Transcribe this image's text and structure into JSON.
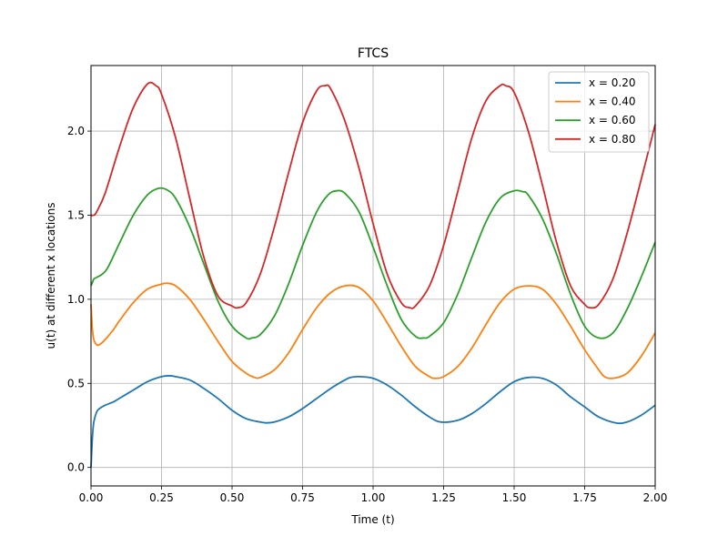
{
  "chart_data": {
    "type": "line",
    "title": "FTCS",
    "xlabel": "Time (t)",
    "ylabel": "u(t) at different x locations",
    "xlim": [
      0.0,
      2.0
    ],
    "ylim": [
      -0.11,
      2.39
    ],
    "xticks": [
      0.0,
      0.25,
      0.5,
      0.75,
      1.0,
      1.25,
      1.5,
      1.75,
      2.0
    ],
    "xtick_labels": [
      "0.00",
      "0.25",
      "0.50",
      "0.75",
      "1.00",
      "1.25",
      "1.50",
      "1.75",
      "2.00"
    ],
    "yticks": [
      0.0,
      0.5,
      1.0,
      1.5,
      2.0
    ],
    "ytick_labels": [
      "0.0",
      "0.5",
      "1.0",
      "1.5",
      "2.0"
    ],
    "grid": true,
    "legend_position": "top-right",
    "series": [
      {
        "name": "x = 0.20",
        "color": "#1f77b4",
        "x": [
          0.0,
          0.005,
          0.01,
          0.02,
          0.03,
          0.05,
          0.08,
          0.1,
          0.15,
          0.2,
          0.25,
          0.28,
          0.3,
          0.35,
          0.4,
          0.45,
          0.5,
          0.55,
          0.6,
          0.62,
          0.65,
          0.7,
          0.75,
          0.8,
          0.85,
          0.9,
          0.92,
          0.95,
          1.0,
          1.05,
          1.1,
          1.15,
          1.2,
          1.24,
          1.3,
          1.35,
          1.4,
          1.45,
          1.5,
          1.55,
          1.6,
          1.65,
          1.7,
          1.75,
          1.8,
          1.86,
          1.9,
          1.95,
          2.0
        ],
        "y": [
          0.0,
          0.18,
          0.27,
          0.33,
          0.35,
          0.37,
          0.39,
          0.41,
          0.46,
          0.51,
          0.54,
          0.545,
          0.54,
          0.52,
          0.47,
          0.41,
          0.34,
          0.29,
          0.27,
          0.265,
          0.27,
          0.3,
          0.35,
          0.41,
          0.47,
          0.52,
          0.535,
          0.54,
          0.53,
          0.49,
          0.43,
          0.36,
          0.3,
          0.27,
          0.28,
          0.32,
          0.38,
          0.45,
          0.51,
          0.535,
          0.53,
          0.49,
          0.42,
          0.36,
          0.3,
          0.265,
          0.27,
          0.31,
          0.37
        ]
      },
      {
        "name": "x = 0.40",
        "color": "#ff7f0e",
        "x": [
          0.0,
          0.005,
          0.01,
          0.02,
          0.03,
          0.05,
          0.08,
          0.1,
          0.15,
          0.2,
          0.25,
          0.27,
          0.3,
          0.35,
          0.4,
          0.45,
          0.5,
          0.55,
          0.58,
          0.6,
          0.65,
          0.7,
          0.75,
          0.8,
          0.85,
          0.9,
          0.95,
          1.0,
          1.05,
          1.1,
          1.15,
          1.2,
          1.22,
          1.25,
          1.3,
          1.35,
          1.4,
          1.45,
          1.5,
          1.55,
          1.6,
          1.65,
          1.7,
          1.75,
          1.8,
          1.82,
          1.85,
          1.9,
          1.95,
          2.0
        ],
        "y": [
          0.97,
          0.82,
          0.76,
          0.73,
          0.73,
          0.76,
          0.82,
          0.87,
          0.98,
          1.06,
          1.09,
          1.095,
          1.08,
          1.0,
          0.88,
          0.75,
          0.63,
          0.56,
          0.535,
          0.535,
          0.58,
          0.68,
          0.82,
          0.95,
          1.04,
          1.08,
          1.07,
          0.99,
          0.86,
          0.72,
          0.6,
          0.54,
          0.53,
          0.54,
          0.6,
          0.71,
          0.85,
          0.98,
          1.06,
          1.08,
          1.06,
          0.97,
          0.84,
          0.7,
          0.58,
          0.54,
          0.53,
          0.56,
          0.66,
          0.8
        ]
      },
      {
        "name": "x = 0.60",
        "color": "#2ca02c",
        "x": [
          0.0,
          0.005,
          0.01,
          0.02,
          0.04,
          0.06,
          0.1,
          0.15,
          0.2,
          0.24,
          0.27,
          0.3,
          0.35,
          0.4,
          0.45,
          0.5,
          0.55,
          0.57,
          0.6,
          0.65,
          0.7,
          0.75,
          0.8,
          0.84,
          0.87,
          0.9,
          0.95,
          1.0,
          1.05,
          1.1,
          1.15,
          1.18,
          1.2,
          1.25,
          1.3,
          1.35,
          1.4,
          1.45,
          1.5,
          1.53,
          1.55,
          1.6,
          1.65,
          1.7,
          1.75,
          1.8,
          1.85,
          1.9,
          1.95,
          2.0
        ],
        "y": [
          1.08,
          1.1,
          1.12,
          1.13,
          1.15,
          1.19,
          1.33,
          1.5,
          1.62,
          1.66,
          1.65,
          1.6,
          1.43,
          1.21,
          0.99,
          0.84,
          0.77,
          0.77,
          0.79,
          0.9,
          1.09,
          1.32,
          1.52,
          1.62,
          1.645,
          1.63,
          1.52,
          1.31,
          1.08,
          0.88,
          0.78,
          0.77,
          0.78,
          0.86,
          1.03,
          1.25,
          1.46,
          1.6,
          1.645,
          1.64,
          1.62,
          1.48,
          1.27,
          1.03,
          0.84,
          0.77,
          0.8,
          0.94,
          1.13,
          1.34
        ]
      },
      {
        "name": "x = 0.80",
        "color": "#d62728",
        "x": [
          0.0,
          0.01,
          0.02,
          0.05,
          0.1,
          0.15,
          0.2,
          0.23,
          0.25,
          0.3,
          0.35,
          0.4,
          0.45,
          0.5,
          0.52,
          0.55,
          0.6,
          0.65,
          0.7,
          0.75,
          0.8,
          0.83,
          0.85,
          0.9,
          0.95,
          1.0,
          1.05,
          1.1,
          1.13,
          1.15,
          1.2,
          1.25,
          1.3,
          1.35,
          1.4,
          1.45,
          1.47,
          1.5,
          1.55,
          1.6,
          1.65,
          1.7,
          1.75,
          1.77,
          1.8,
          1.85,
          1.9,
          1.95,
          2.0
        ],
        "y": [
          1.5,
          1.5,
          1.52,
          1.63,
          1.9,
          2.14,
          2.28,
          2.27,
          2.22,
          1.96,
          1.6,
          1.25,
          1.02,
          0.96,
          0.95,
          0.98,
          1.15,
          1.43,
          1.75,
          2.05,
          2.24,
          2.27,
          2.25,
          2.06,
          1.78,
          1.45,
          1.15,
          0.98,
          0.95,
          0.96,
          1.08,
          1.32,
          1.64,
          1.96,
          2.18,
          2.27,
          2.27,
          2.23,
          2.0,
          1.68,
          1.34,
          1.08,
          0.97,
          0.95,
          0.97,
          1.12,
          1.39,
          1.71,
          2.04
        ]
      }
    ]
  }
}
